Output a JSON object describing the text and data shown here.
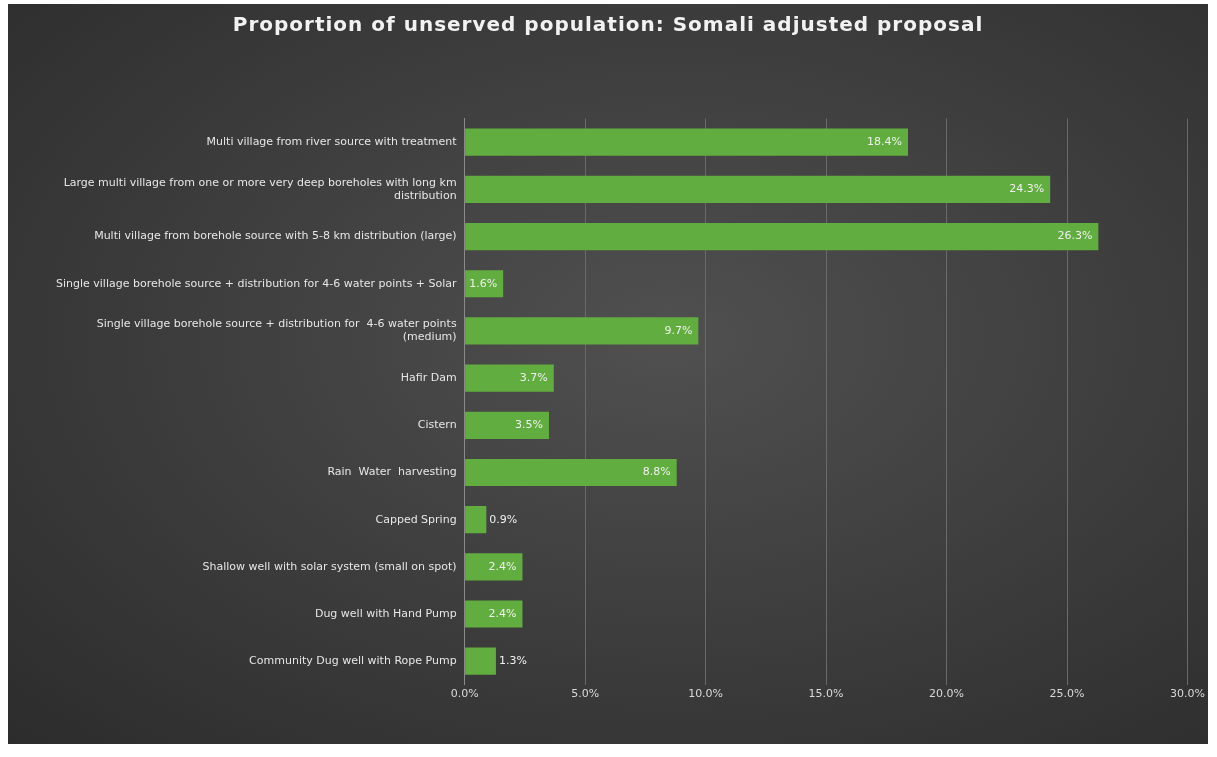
{
  "chart_data": {
    "type": "bar",
    "orientation": "horizontal",
    "title": "Proportion of unserved population: Somali adjusted proposal",
    "categories": [
      "Multi village from river source with treatment",
      "Large multi village from one or more very deep boreholes with long km distribution",
      "Multi village from borehole source with 5-8 km distribution (large)",
      "Single village borehole source + distribution for 4-6 water points + Solar",
      "Single village borehole source + distribution for  4-6 water points (medium)",
      "Hafir Dam",
      "Cistern",
      "Rain  Water  harvesting",
      "Capped Spring",
      "Shallow well with solar system (small on spot)",
      "Dug well with Hand Pump",
      "Community Dug well with Rope Pump"
    ],
    "values": [
      18.4,
      24.3,
      26.3,
      1.6,
      9.7,
      3.7,
      3.5,
      8.8,
      0.9,
      2.4,
      2.4,
      1.3
    ],
    "value_labels": [
      "18.4%",
      "24.3%",
      "26.3%",
      "1.6%",
      "9.7%",
      "3.7%",
      "3.5%",
      "8.8%",
      "0.9%",
      "2.4%",
      "2.4%",
      "1.3%"
    ],
    "color": "#62ad3f",
    "xlim": [
      0,
      30
    ],
    "xticks": [
      {
        "value": 0,
        "label": "0.0%"
      },
      {
        "value": 5,
        "label": "5.0%"
      },
      {
        "value": 10,
        "label": "10.0%"
      },
      {
        "value": 15,
        "label": "15.0%"
      },
      {
        "value": 20,
        "label": "20.0%"
      },
      {
        "value": 25,
        "label": "25.0%"
      },
      {
        "value": 30,
        "label": "30.0%"
      }
    ],
    "grid": "x",
    "legend": false
  }
}
